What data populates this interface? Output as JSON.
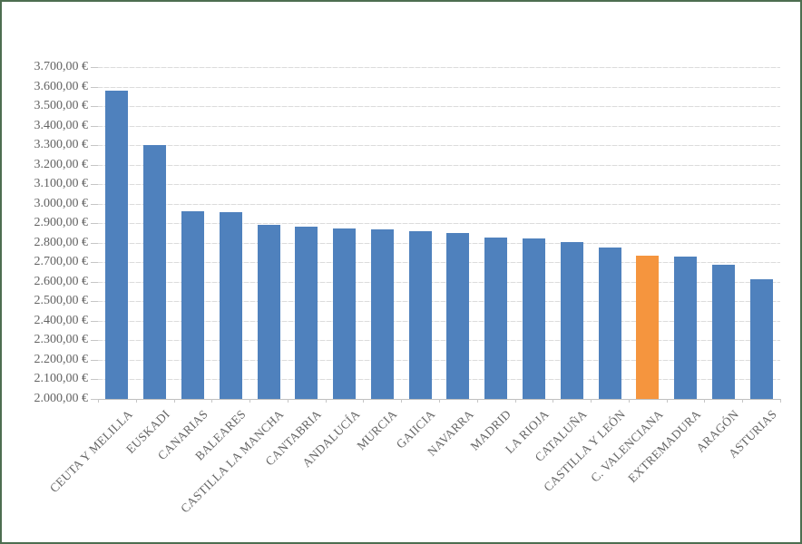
{
  "frame": {
    "border_color": "#4d6e50",
    "background_color": "#ffffff"
  },
  "axis_style": {
    "text_color": "#636363",
    "gridline_color": "#dcdcdc",
    "axisline_color": "#bfbfbf",
    "tick_color": "#c6c6c6"
  },
  "chart_data": {
    "type": "bar",
    "title": "",
    "xlabel": "",
    "ylabel": "",
    "unit": "EUR",
    "grid": true,
    "legend": false,
    "ylim": [
      2000,
      3700
    ],
    "y_tick_step": 100,
    "y_tick_labels": [
      "2.000,00 €",
      "2.100,00 €",
      "2.200,00 €",
      "2.300,00 €",
      "2.400,00 €",
      "2.500,00 €",
      "2.600,00 €",
      "2.700,00 €",
      "2.800,00 €",
      "2.900,00 €",
      "3.000,00 €",
      "3.100,00 €",
      "3.200,00 €",
      "3.300,00 €",
      "3.400,00 €",
      "3.500,00 €",
      "3.600,00 €",
      "3.700,00 €"
    ],
    "categories": [
      "CEUTA Y MELILLA",
      "EUSKADI",
      "CANARIAS",
      "BALEARES",
      "CASTILLA LA MANCHA",
      "CANTABRIA",
      "ANDALUCÍA",
      "MURCIA",
      "GAIICIA",
      "NAVARRA",
      "MADRID",
      "LA RIOJA",
      "CATALUÑA",
      "CASTILLA Y LEÓN",
      "C. VALENCIANA",
      "EXTREMADURA",
      "ARAGÓN",
      "ASTURIAS"
    ],
    "values": [
      3580,
      3300,
      2960,
      2958,
      2891,
      2883,
      2874,
      2870,
      2858,
      2848,
      2825,
      2821,
      2803,
      2774,
      2736,
      2730,
      2689,
      2612
    ],
    "bar_color": "#4F81BD",
    "highlight_color": "#F5953E",
    "highlight_index": 14,
    "highlight_category": "C. VALENCIANA"
  }
}
